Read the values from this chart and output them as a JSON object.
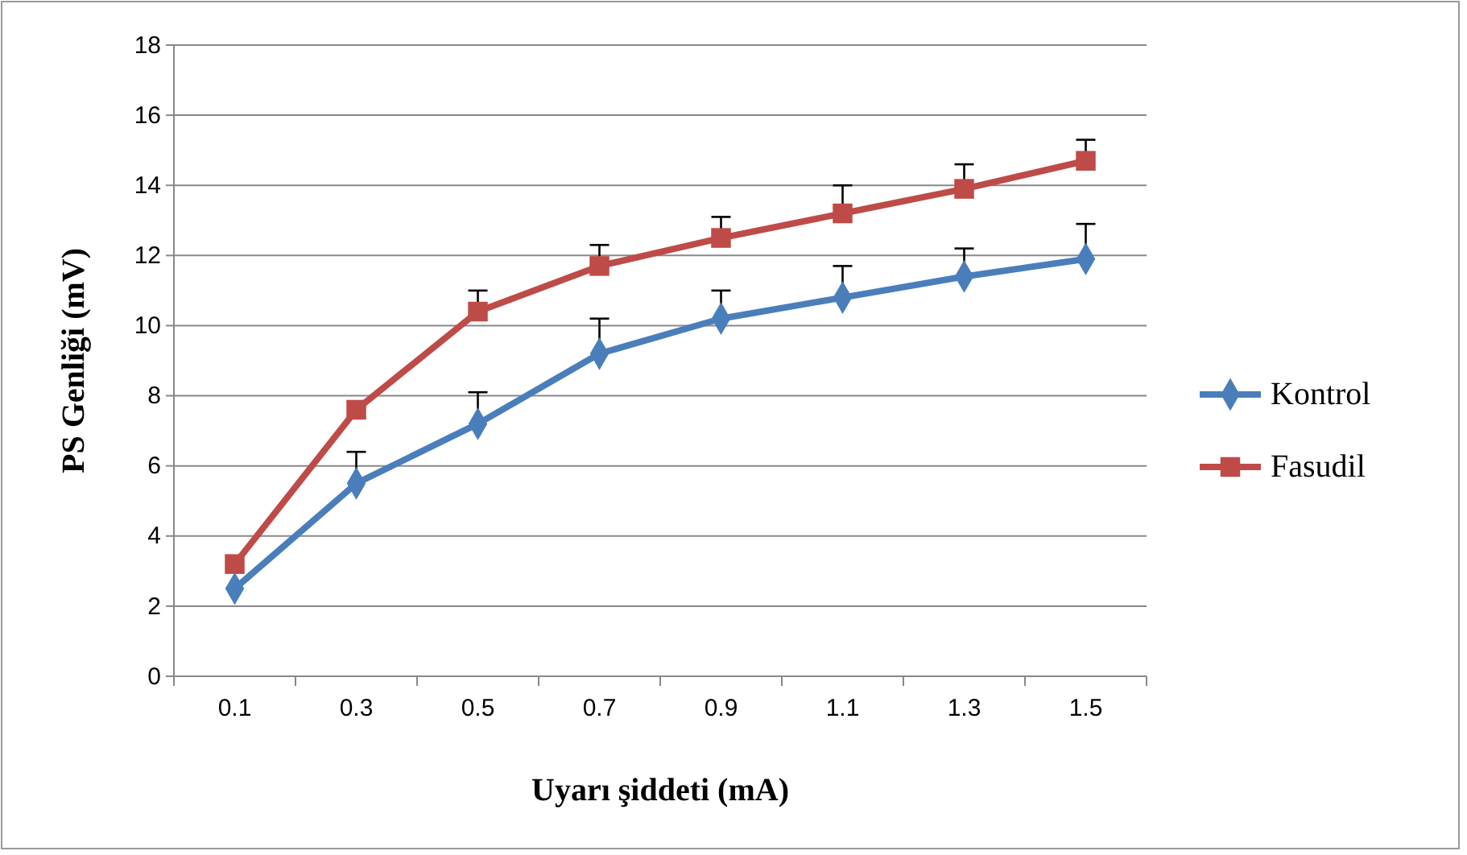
{
  "chart_data": {
    "type": "line",
    "xlabel": "Uyarı şiddeti (mA)",
    "ylabel": "PS Genliği (mV)",
    "categories": [
      "0.1",
      "0.3",
      "0.5",
      "0.7",
      "0.9",
      "1.1",
      "1.3",
      "1.5"
    ],
    "series": [
      {
        "name": "Kontrol",
        "color": "#4a7ebb",
        "marker": "diamond",
        "values": [
          2.5,
          5.5,
          7.2,
          9.2,
          10.2,
          10.8,
          11.4,
          11.9
        ],
        "errors": [
          null,
          [
            5.5,
            6.4
          ],
          [
            7.2,
            8.1
          ],
          [
            9.2,
            10.2
          ],
          [
            10.2,
            11.0
          ],
          [
            10.8,
            11.7
          ],
          [
            11.4,
            12.2
          ],
          [
            11.9,
            12.9
          ]
        ]
      },
      {
        "name": "Fasudil",
        "color": "#be4b48",
        "marker": "square",
        "values": [
          3.2,
          7.6,
          10.4,
          11.7,
          12.5,
          13.2,
          13.9,
          14.7
        ],
        "errors": [
          null,
          null,
          [
            10.4,
            11.0
          ],
          [
            11.7,
            12.3
          ],
          [
            12.5,
            13.1
          ],
          [
            13.2,
            14.0
          ],
          [
            13.9,
            14.6
          ],
          [
            14.7,
            15.3
          ]
        ]
      }
    ],
    "ylim": [
      0,
      18
    ],
    "yticks": [
      0,
      2,
      4,
      6,
      8,
      10,
      12,
      14,
      16,
      18
    ],
    "grid": "y",
    "legend": "right",
    "line_style": "solid"
  }
}
